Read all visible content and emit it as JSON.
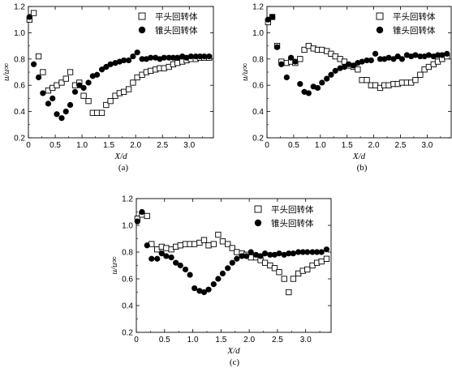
{
  "colors": {
    "axis": "#000000",
    "marker": "#000000",
    "background": "#ffffff"
  },
  "chart_data": [
    {
      "type": "scatter",
      "panel_label": "(a)",
      "xlabel": "X/d",
      "ylabel": "u/u∞",
      "xlim": [
        0,
        3.45
      ],
      "ylim": [
        0.2,
        1.2
      ],
      "xticks": [
        "0",
        "0.5",
        "1.0",
        "1.5",
        "2.0",
        "2.5",
        "3.0"
      ],
      "xtick_values": [
        0,
        0.5,
        1.0,
        1.5,
        2.0,
        2.5,
        3.0
      ],
      "yticks": [
        "0.2",
        "0.4",
        "0.6",
        "0.8",
        "1.0",
        "1.2"
      ],
      "ytick_values": [
        0.2,
        0.4,
        0.6,
        0.8,
        1.0,
        1.2
      ],
      "legend_position": "top-right",
      "series": [
        {
          "name": "平头回转体",
          "marker": "open-square",
          "x": [
            0.02,
            0.1,
            0.19,
            0.27,
            0.37,
            0.45,
            0.53,
            0.62,
            0.7,
            0.78,
            0.87,
            0.95,
            1.03,
            1.12,
            1.2,
            1.28,
            1.37,
            1.45,
            1.53,
            1.62,
            1.7,
            1.78,
            1.87,
            1.95,
            2.03,
            2.12,
            2.2,
            2.28,
            2.37,
            2.45,
            2.53,
            2.62,
            2.7,
            2.78,
            2.87,
            2.95,
            3.03,
            3.12,
            3.2,
            3.28,
            3.37
          ],
          "y": [
            1.1,
            1.15,
            0.82,
            0.7,
            0.56,
            0.58,
            0.6,
            0.62,
            0.65,
            0.7,
            0.6,
            0.62,
            0.52,
            0.48,
            0.39,
            0.39,
            0.39,
            0.45,
            0.48,
            0.52,
            0.54,
            0.55,
            0.57,
            0.62,
            0.66,
            0.68,
            0.7,
            0.71,
            0.72,
            0.73,
            0.73,
            0.74,
            0.76,
            0.77,
            0.78,
            0.79,
            0.8,
            0.8,
            0.81,
            0.81,
            0.81
          ]
        },
        {
          "name": "锥头回转体",
          "marker": "filled-circle",
          "x": [
            0.02,
            0.1,
            0.19,
            0.27,
            0.37,
            0.45,
            0.53,
            0.62,
            0.7,
            0.78,
            0.87,
            0.95,
            1.03,
            1.12,
            1.2,
            1.28,
            1.37,
            1.45,
            1.53,
            1.62,
            1.7,
            1.78,
            1.87,
            1.95,
            2.03,
            2.12,
            2.2,
            2.28,
            2.37,
            2.45,
            2.53,
            2.62,
            2.7,
            2.78,
            2.87,
            2.95,
            3.03,
            3.12,
            3.2,
            3.28,
            3.37
          ],
          "y": [
            1.12,
            0.76,
            0.66,
            0.54,
            0.46,
            0.5,
            0.38,
            0.35,
            0.4,
            0.45,
            0.55,
            0.6,
            0.58,
            0.62,
            0.67,
            0.68,
            0.72,
            0.74,
            0.76,
            0.77,
            0.78,
            0.79,
            0.79,
            0.82,
            0.85,
            0.8,
            0.8,
            0.81,
            0.81,
            0.8,
            0.81,
            0.81,
            0.81,
            0.81,
            0.82,
            0.81,
            0.82,
            0.82,
            0.82,
            0.82,
            0.82
          ]
        }
      ]
    },
    {
      "type": "scatter",
      "panel_label": "(b)",
      "xlabel": "X/d",
      "ylabel": "u/u∞",
      "xlim": [
        0,
        3.45
      ],
      "ylim": [
        0.2,
        1.2
      ],
      "xticks": [
        "0",
        "0.5",
        "1.0",
        "1.5",
        "2.0",
        "2.5",
        "3.0"
      ],
      "xtick_values": [
        0,
        0.5,
        1.0,
        1.5,
        2.0,
        2.5,
        3.0
      ],
      "yticks": [
        "0.2",
        "0.4",
        "0.6",
        "0.8",
        "1.0",
        "1.2"
      ],
      "ytick_values": [
        0.2,
        0.4,
        0.6,
        0.8,
        1.0,
        1.2
      ],
      "legend_position": "top-right",
      "series": [
        {
          "name": "平头回转体",
          "marker": "open-square",
          "x": [
            0.02,
            0.1,
            0.19,
            0.27,
            0.37,
            0.45,
            0.53,
            0.62,
            0.7,
            0.78,
            0.87,
            0.95,
            1.03,
            1.12,
            1.2,
            1.28,
            1.37,
            1.45,
            1.53,
            1.62,
            1.7,
            1.78,
            1.87,
            1.95,
            2.03,
            2.12,
            2.2,
            2.28,
            2.37,
            2.45,
            2.53,
            2.62,
            2.7,
            2.78,
            2.87,
            2.95,
            3.03,
            3.12,
            3.2,
            3.28,
            3.37
          ],
          "y": [
            1.08,
            1.12,
            0.9,
            0.78,
            0.77,
            0.78,
            0.77,
            0.8,
            0.87,
            0.9,
            0.88,
            0.87,
            0.87,
            0.86,
            0.84,
            0.82,
            0.8,
            0.78,
            0.75,
            0.74,
            0.72,
            0.64,
            0.64,
            0.6,
            0.6,
            0.58,
            0.6,
            0.6,
            0.61,
            0.61,
            0.62,
            0.62,
            0.62,
            0.64,
            0.68,
            0.72,
            0.74,
            0.76,
            0.78,
            0.8,
            0.82
          ]
        },
        {
          "name": "锥头回转体",
          "marker": "filled-circle",
          "x": [
            0.02,
            0.1,
            0.19,
            0.27,
            0.37,
            0.45,
            0.53,
            0.62,
            0.7,
            0.78,
            0.87,
            0.95,
            1.03,
            1.12,
            1.2,
            1.28,
            1.37,
            1.45,
            1.53,
            1.62,
            1.7,
            1.78,
            1.87,
            1.95,
            2.03,
            2.12,
            2.2,
            2.28,
            2.37,
            2.45,
            2.53,
            2.62,
            2.7,
            2.78,
            2.87,
            2.95,
            3.03,
            3.12,
            3.2,
            3.28,
            3.37
          ],
          "y": [
            1.1,
            1.12,
            0.89,
            0.76,
            0.66,
            0.81,
            0.78,
            0.61,
            0.55,
            0.54,
            0.59,
            0.58,
            0.62,
            0.65,
            0.68,
            0.71,
            0.73,
            0.74,
            0.76,
            0.75,
            0.77,
            0.78,
            0.79,
            0.79,
            0.84,
            0.8,
            0.8,
            0.81,
            0.8,
            0.82,
            0.8,
            0.83,
            0.82,
            0.83,
            0.82,
            0.82,
            0.83,
            0.82,
            0.83,
            0.83,
            0.84
          ]
        }
      ]
    },
    {
      "type": "scatter",
      "panel_label": "(c)",
      "xlabel": "X/d",
      "ylabel": "u/u∞",
      "xlim": [
        0,
        3.45
      ],
      "ylim": [
        0.2,
        1.2
      ],
      "xticks": [
        "0",
        "0.5",
        "1.0",
        "1.5",
        "2.0",
        "2.5",
        "3.0"
      ],
      "xtick_values": [
        0,
        0.5,
        1.0,
        1.5,
        2.0,
        2.5,
        3.0
      ],
      "yticks": [
        "0.2",
        "0.4",
        "0.6",
        "0.8",
        "1.0",
        "1.2"
      ],
      "ytick_values": [
        0.2,
        0.4,
        0.6,
        0.8,
        1.0,
        1.2
      ],
      "legend_position": "top-right",
      "series": [
        {
          "name": "平头回转体",
          "marker": "open-square",
          "x": [
            0.02,
            0.1,
            0.19,
            0.27,
            0.37,
            0.45,
            0.53,
            0.62,
            0.7,
            0.78,
            0.87,
            0.95,
            1.03,
            1.12,
            1.2,
            1.28,
            1.37,
            1.45,
            1.53,
            1.62,
            1.7,
            1.78,
            1.87,
            1.95,
            2.03,
            2.12,
            2.2,
            2.28,
            2.37,
            2.45,
            2.53,
            2.62,
            2.7,
            2.78,
            2.87,
            2.95,
            3.03,
            3.12,
            3.2,
            3.28,
            3.37
          ],
          "y": [
            1.05,
            1.08,
            1.07,
            0.86,
            0.82,
            0.84,
            0.83,
            0.82,
            0.84,
            0.85,
            0.86,
            0.86,
            0.86,
            0.87,
            0.89,
            0.85,
            0.86,
            0.93,
            0.88,
            0.86,
            0.83,
            0.8,
            0.79,
            0.78,
            0.76,
            0.76,
            0.74,
            0.72,
            0.7,
            0.68,
            0.65,
            0.6,
            0.5,
            0.6,
            0.64,
            0.66,
            0.67,
            0.7,
            0.72,
            0.73,
            0.75
          ]
        },
        {
          "name": "锥头回转体",
          "marker": "filled-circle",
          "x": [
            0.02,
            0.1,
            0.19,
            0.27,
            0.37,
            0.45,
            0.53,
            0.62,
            0.7,
            0.78,
            0.87,
            0.95,
            1.03,
            1.12,
            1.2,
            1.28,
            1.37,
            1.45,
            1.53,
            1.62,
            1.7,
            1.78,
            1.87,
            1.95,
            2.03,
            2.12,
            2.2,
            2.28,
            2.37,
            2.45,
            2.53,
            2.62,
            2.7,
            2.78,
            2.87,
            2.95,
            3.03,
            3.12,
            3.2,
            3.28,
            3.37
          ],
          "y": [
            1.03,
            1.1,
            0.85,
            0.75,
            0.75,
            0.79,
            0.77,
            0.76,
            0.72,
            0.7,
            0.67,
            0.63,
            0.53,
            0.51,
            0.5,
            0.52,
            0.56,
            0.6,
            0.64,
            0.68,
            0.72,
            0.75,
            0.77,
            0.77,
            0.8,
            0.78,
            0.77,
            0.79,
            0.78,
            0.78,
            0.79,
            0.78,
            0.79,
            0.79,
            0.8,
            0.8,
            0.8,
            0.8,
            0.8,
            0.8,
            0.82
          ]
        }
      ]
    }
  ]
}
